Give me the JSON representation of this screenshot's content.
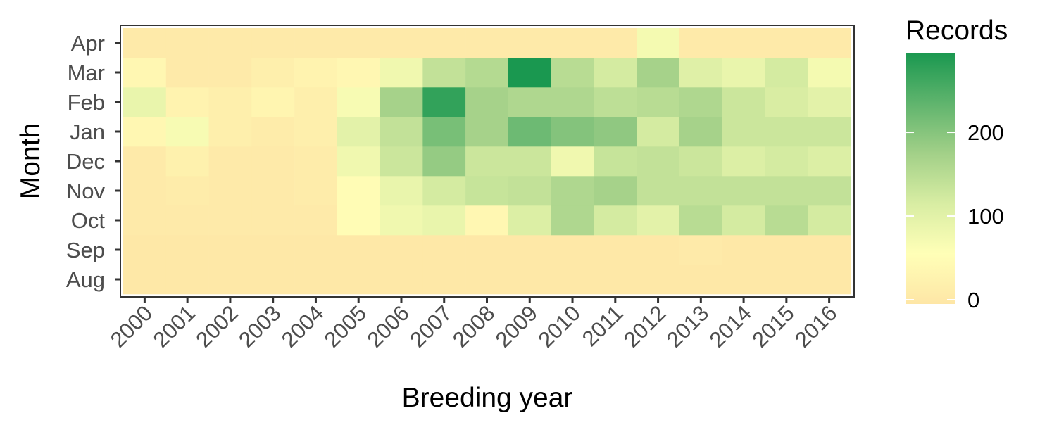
{
  "chart_data": {
    "type": "heatmap",
    "xlabel": "Breeding year",
    "ylabel": "Month",
    "x": [
      "2000",
      "2001",
      "2002",
      "2003",
      "2004",
      "2005",
      "2006",
      "2007",
      "2008",
      "2009",
      "2010",
      "2011",
      "2012",
      "2013",
      "2014",
      "2015",
      "2016"
    ],
    "y": [
      "Aug",
      "Sep",
      "Oct",
      "Nov",
      "Dec",
      "Jan",
      "Feb",
      "Mar",
      "Apr"
    ],
    "values": [
      [
        5,
        5,
        5,
        5,
        5,
        5,
        5,
        5,
        5,
        5,
        5,
        5,
        5,
        5,
        5,
        5,
        5
      ],
      [
        5,
        5,
        5,
        5,
        5,
        5,
        5,
        5,
        5,
        5,
        5,
        5,
        5,
        10,
        5,
        5,
        5
      ],
      [
        10,
        10,
        10,
        10,
        10,
        50,
        80,
        90,
        40,
        110,
        160,
        120,
        100,
        150,
        120,
        150,
        120
      ],
      [
        10,
        15,
        10,
        10,
        15,
        50,
        90,
        120,
        135,
        140,
        160,
        170,
        140,
        140,
        140,
        140,
        140
      ],
      [
        10,
        25,
        10,
        10,
        15,
        80,
        130,
        185,
        130,
        130,
        80,
        135,
        140,
        130,
        110,
        120,
        110
      ],
      [
        40,
        70,
        20,
        15,
        20,
        100,
        140,
        210,
        170,
        220,
        200,
        190,
        120,
        170,
        130,
        130,
        130
      ],
      [
        90,
        30,
        20,
        35,
        20,
        70,
        170,
        270,
        170,
        160,
        160,
        145,
        150,
        160,
        130,
        115,
        100
      ],
      [
        40,
        10,
        10,
        20,
        30,
        40,
        80,
        140,
        155,
        290,
        150,
        120,
        170,
        105,
        90,
        120,
        75
      ],
      [
        10,
        10,
        10,
        10,
        10,
        10,
        10,
        10,
        10,
        10,
        10,
        10,
        75,
        10,
        10,
        10,
        10
      ]
    ],
    "legend": {
      "title": "Records",
      "ticks": [
        0,
        100,
        200
      ],
      "range": [
        0,
        290
      ],
      "colors": [
        "#FEE6A6",
        "#FFFFB7",
        "#D8EDA3",
        "#A2D088",
        "#5FB46D",
        "#1A9850"
      ]
    }
  }
}
